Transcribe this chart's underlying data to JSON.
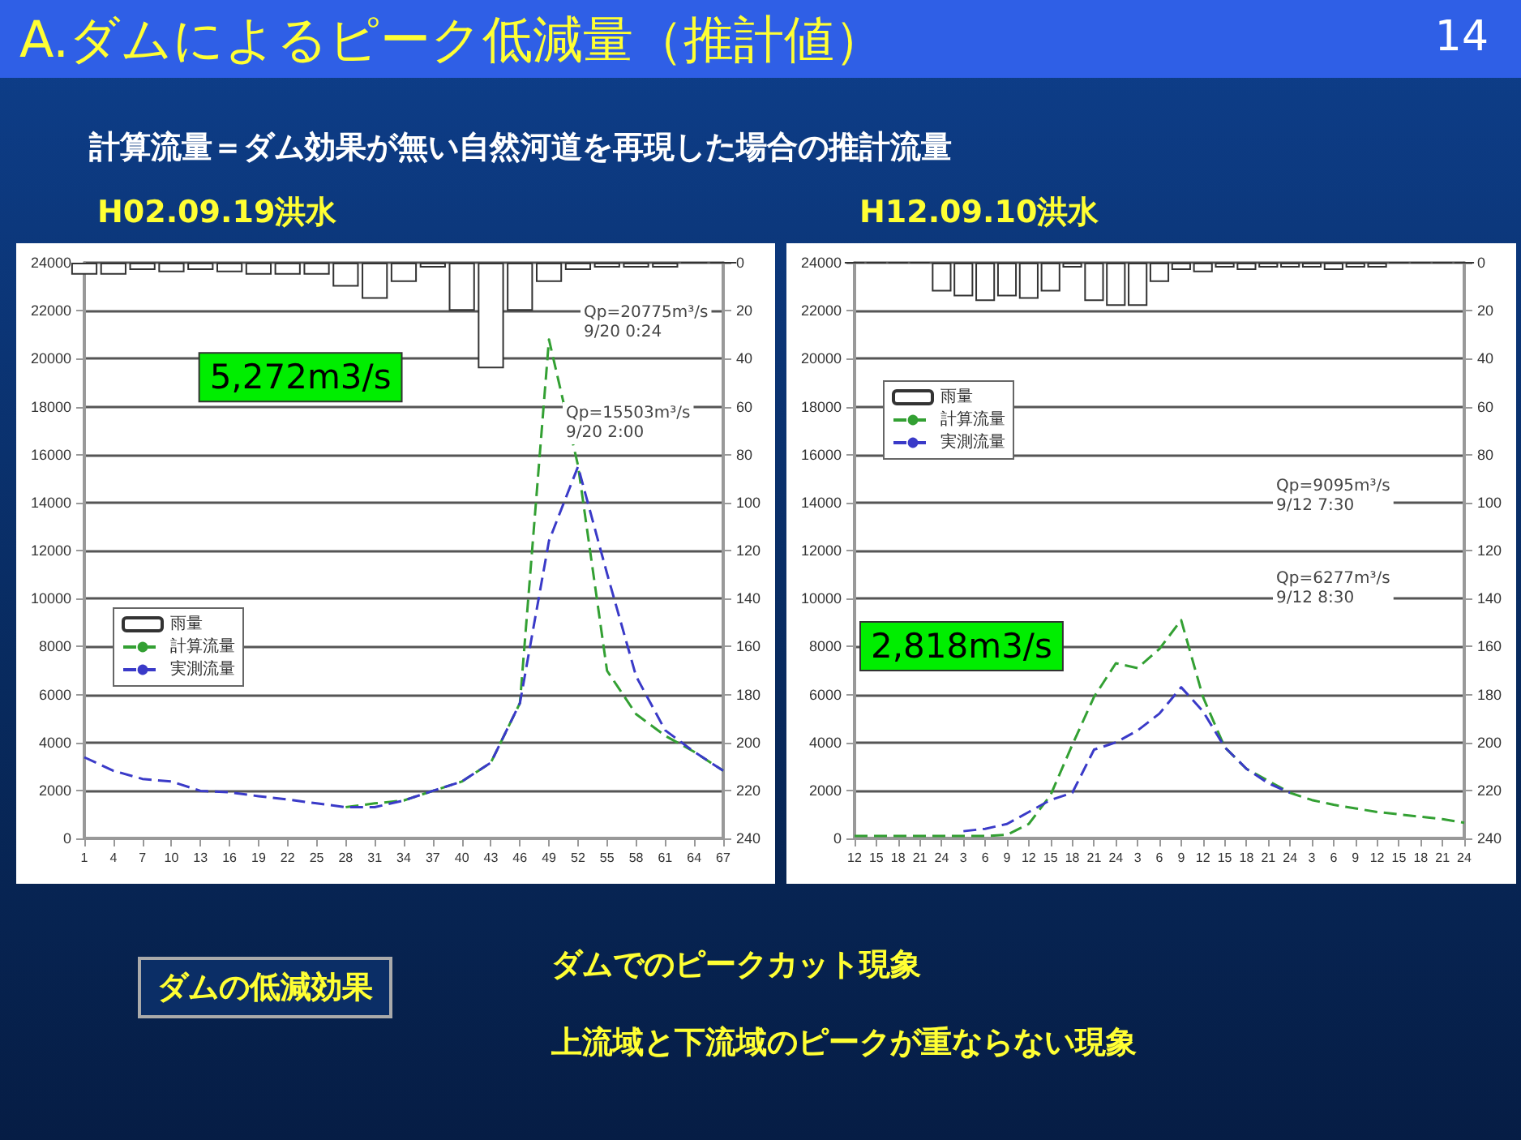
{
  "chart_data": [
    {
      "type": "other",
      "title": "A.ダムによるピーク低減量（推計値）",
      "subtitle": "計算流量＝ダム効果が無い自然河道を再現した場合の推計流量",
      "annotations": [
        "14",
        "ダムの低減効果",
        "ダムでのピークカット現象",
        "上流域と下流域のピークが重ならない現象"
      ]
    },
    {
      "type": "line",
      "title": "H02.09.19洪水",
      "categories": [
        "1",
        "4",
        "7",
        "10",
        "13",
        "16",
        "19",
        "22",
        "25",
        "28",
        "31",
        "34",
        "37",
        "40",
        "43",
        "46",
        "49",
        "52",
        "55",
        "58",
        "61",
        "64",
        "67"
      ],
      "series": [
        {
          "name": "雨量",
          "type": "bar",
          "axis": "y2",
          "color": "#333333",
          "values": [
            5,
            5,
            3,
            4,
            3,
            4,
            5,
            5,
            5,
            10,
            15,
            8,
            2,
            20,
            44,
            20,
            8,
            3,
            2,
            2,
            2,
            0,
            0
          ]
        },
        {
          "name": "計算流量",
          "color": "#33a033",
          "values": [
            null,
            null,
            null,
            null,
            null,
            null,
            null,
            null,
            null,
            1300,
            1460,
            1580,
            1980,
            2370,
            3160,
            5640,
            20800,
            15550,
            6990,
            5180,
            4280,
            3610,
            2820
          ]
        },
        {
          "name": "実測流量",
          "color": "#3a3ac8",
          "values": [
            3380,
            2820,
            2480,
            2370,
            1980,
            1920,
            1760,
            1620,
            1460,
            1300,
            1300,
            1580,
            1980,
            2370,
            3160,
            5640,
            12400,
            15500,
            11040,
            6760,
            4510,
            3610,
            2820
          ]
        }
      ],
      "ylim": [
        0,
        24000
      ],
      "yticks": [
        0,
        2000,
        4000,
        6000,
        8000,
        10000,
        12000,
        14000,
        16000,
        18000,
        20000,
        22000,
        24000
      ],
      "y2lim": [
        240,
        0
      ],
      "y2ticks": [
        0,
        20,
        40,
        60,
        80,
        100,
        120,
        140,
        160,
        180,
        200,
        220,
        240
      ],
      "grid": "y",
      "legend": "left",
      "marker": "none",
      "line_style": "dashed",
      "annotations": [
        "Qp=20775m³/s\n9/20 0:24",
        "Qp=15503m³/s\n9/20 2:00",
        "5,272m3/s"
      ]
    },
    {
      "type": "line",
      "title": "H12.09.10洪水",
      "categories": [
        "12",
        "15",
        "18",
        "21",
        "24",
        "3",
        "6",
        "9",
        "12",
        "15",
        "18",
        "21",
        "24",
        "3",
        "6",
        "9",
        "12",
        "15",
        "18",
        "21",
        "24",
        "3",
        "6",
        "9",
        "12",
        "15",
        "18",
        "21",
        "24"
      ],
      "series": [
        {
          "name": "雨量",
          "type": "bar",
          "axis": "y2",
          "color": "#333333",
          "values": [
            0,
            0,
            0,
            0,
            12,
            14,
            16,
            14,
            15,
            12,
            2,
            16,
            18,
            18,
            8,
            3,
            4,
            2,
            3,
            2,
            2,
            2,
            3,
            2,
            2,
            0,
            0,
            0,
            0
          ]
        },
        {
          "name": "計算流量",
          "color": "#33a033",
          "values": [
            100,
            100,
            100,
            100,
            100,
            100,
            100,
            150,
            600,
            1800,
            3900,
            5900,
            7300,
            7100,
            7900,
            9100,
            5900,
            3800,
            2900,
            2400,
            1900,
            1600,
            1400,
            1250,
            1100,
            1000,
            900,
            800,
            650
          ]
        },
        {
          "name": "実測流量",
          "color": "#3a3ac8",
          "values": [
            null,
            null,
            null,
            null,
            null,
            300,
            400,
            600,
            1100,
            1600,
            1900,
            3700,
            4000,
            4500,
            5200,
            6300,
            5300,
            3800,
            2900,
            2300,
            1900,
            null,
            null,
            null,
            null,
            null,
            null,
            null,
            null
          ]
        }
      ],
      "ylim": [
        0,
        24000
      ],
      "yticks": [
        0,
        2000,
        4000,
        6000,
        8000,
        10000,
        12000,
        14000,
        16000,
        18000,
        20000,
        22000,
        24000
      ],
      "y2lim": [
        240,
        0
      ],
      "y2ticks": [
        0,
        20,
        40,
        60,
        80,
        100,
        120,
        140,
        160,
        180,
        200,
        220,
        240
      ],
      "grid": "y",
      "legend": "top left",
      "marker": "none",
      "line_style": "dashed",
      "annotations": [
        "Qp=9095m³/s\n9/12 7:30",
        "Qp=6277m³/s\n9/12 8:30",
        "2,818m3/s"
      ]
    }
  ]
}
